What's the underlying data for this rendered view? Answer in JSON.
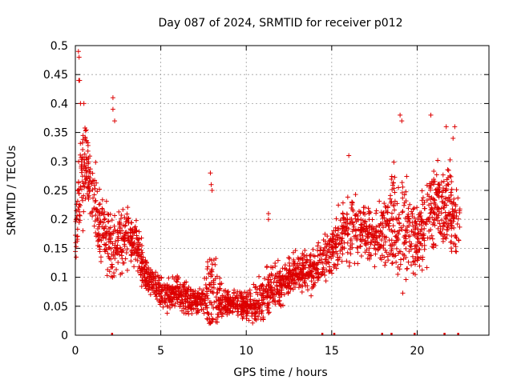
{
  "chart_data": {
    "type": "scatter",
    "title": "Day 087 of 2024, SRMTID for receiver p012",
    "xlabel": "GPS time / hours",
    "ylabel": "SRMTID / TECUs",
    "xlim": [
      0,
      24.2
    ],
    "ylim": [
      0,
      0.5
    ],
    "x_ticks": [
      0,
      5,
      10,
      15,
      20
    ],
    "x_tick_labels": [
      "0",
      "5",
      "10",
      "15",
      "20"
    ],
    "y_ticks": [
      0,
      0.05,
      0.1,
      0.15,
      0.2,
      0.25,
      0.3,
      0.35,
      0.4,
      0.45,
      0.5
    ],
    "y_tick_labels": [
      "0",
      "0.05",
      "0.1",
      "0.15",
      "0.2",
      "0.25",
      "0.3",
      "0.35",
      "0.4",
      "0.45",
      "0.5"
    ],
    "grid": true,
    "marker": "+",
    "marker_color": "#dd0000",
    "series": [
      {
        "name": "SRMTID",
        "profile_hours": [
          0,
          0.3,
          0.6,
          1.0,
          1.5,
          2.0,
          2.5,
          3.0,
          3.5,
          4.0,
          4.5,
          5.0,
          5.5,
          6.0,
          6.5,
          7.0,
          7.5,
          8.0,
          8.5,
          9.0,
          9.5,
          10.0,
          10.5,
          11.0,
          11.5,
          12.0,
          12.5,
          13.0,
          13.5,
          14.0,
          14.5,
          15.0,
          15.5,
          16.0,
          16.5,
          17.0,
          17.5,
          18.0,
          18.5,
          19.0,
          19.5,
          20.0,
          20.5,
          21.0,
          21.5,
          22.0,
          22.5
        ],
        "profile_median": [
          0.16,
          0.28,
          0.3,
          0.24,
          0.18,
          0.16,
          0.16,
          0.17,
          0.16,
          0.11,
          0.09,
          0.07,
          0.07,
          0.07,
          0.065,
          0.06,
          0.06,
          0.07,
          0.06,
          0.055,
          0.055,
          0.05,
          0.055,
          0.065,
          0.08,
          0.09,
          0.1,
          0.11,
          0.11,
          0.11,
          0.13,
          0.15,
          0.17,
          0.18,
          0.18,
          0.18,
          0.17,
          0.18,
          0.19,
          0.2,
          0.18,
          0.16,
          0.2,
          0.22,
          0.22,
          0.21,
          0.19
        ],
        "profile_spread": [
          0.04,
          0.09,
          0.06,
          0.06,
          0.06,
          0.05,
          0.05,
          0.05,
          0.04,
          0.03,
          0.025,
          0.025,
          0.025,
          0.025,
          0.025,
          0.02,
          0.025,
          0.08,
          0.03,
          0.02,
          0.02,
          0.02,
          0.025,
          0.04,
          0.03,
          0.03,
          0.03,
          0.03,
          0.03,
          0.03,
          0.04,
          0.04,
          0.05,
          0.05,
          0.05,
          0.04,
          0.04,
          0.05,
          0.08,
          0.1,
          0.06,
          0.05,
          0.07,
          0.08,
          0.07,
          0.07,
          0.05
        ],
        "outliers": [
          [
            0.18,
            0.49
          ],
          [
            0.22,
            0.48
          ],
          [
            0.2,
            0.44
          ],
          [
            0.25,
            0.44
          ],
          [
            0.3,
            0.4
          ],
          [
            0.5,
            0.4
          ],
          [
            2.2,
            0.41
          ],
          [
            2.2,
            0.39
          ],
          [
            2.3,
            0.37
          ],
          [
            7.9,
            0.28
          ],
          [
            7.95,
            0.26
          ],
          [
            8.0,
            0.25
          ],
          [
            16.0,
            0.31
          ],
          [
            19.0,
            0.38
          ],
          [
            19.1,
            0.37
          ],
          [
            20.8,
            0.38
          ],
          [
            21.7,
            0.36
          ],
          [
            22.2,
            0.36
          ],
          [
            22.1,
            0.34
          ],
          [
            11.3,
            0.21
          ],
          [
            11.3,
            0.2
          ]
        ]
      }
    ],
    "axis_marks": [
      2.15,
      14.45,
      15.15,
      17.95,
      18.5,
      19.85,
      21.6,
      22.4
    ]
  }
}
